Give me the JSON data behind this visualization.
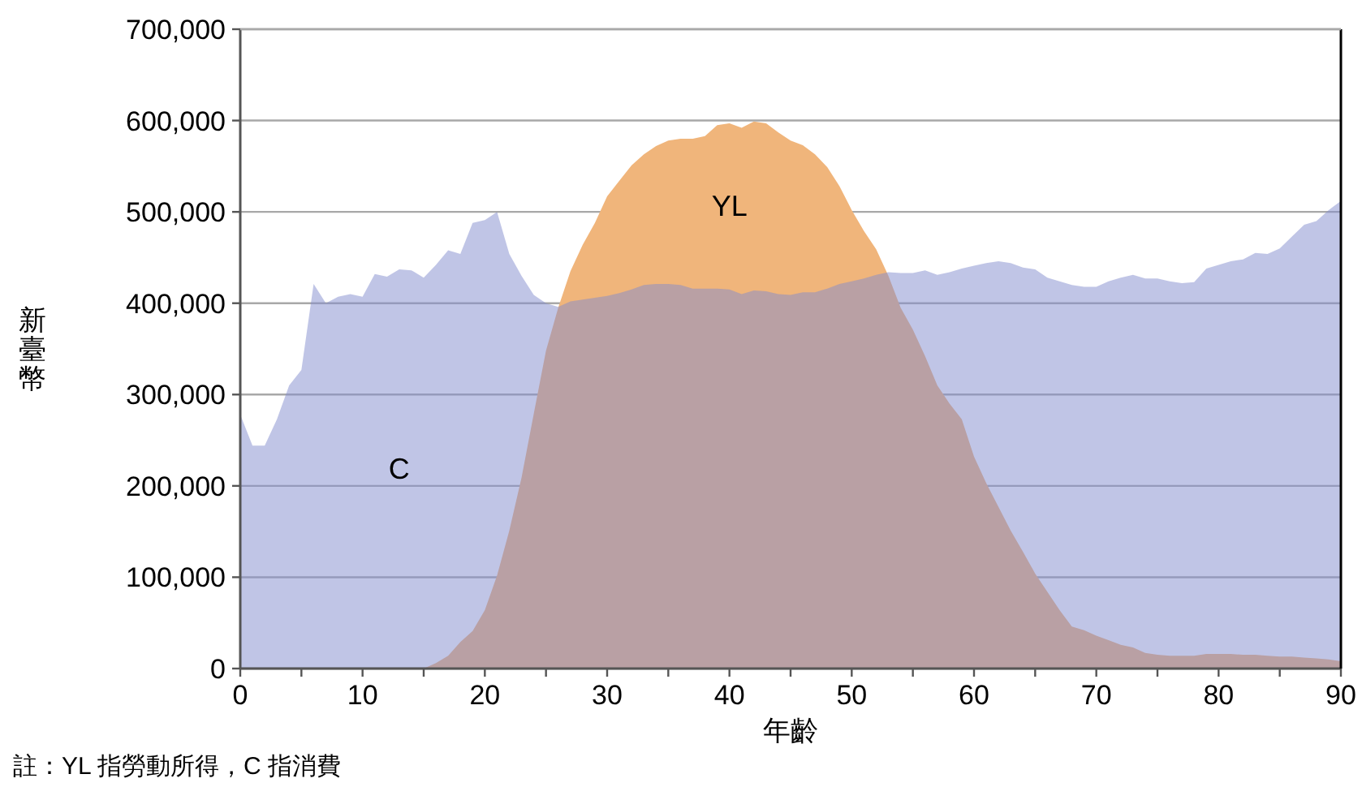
{
  "chart_data": {
    "type": "area",
    "xlabel": "年齡",
    "ylabel": "新臺幣",
    "annotations": [
      "註：YL 指勞動所得，C 指消費"
    ],
    "x": [
      0,
      1,
      2,
      3,
      4,
      5,
      6,
      7,
      8,
      9,
      10,
      11,
      12,
      13,
      14,
      15,
      16,
      17,
      18,
      19,
      20,
      21,
      22,
      23,
      24,
      25,
      26,
      27,
      28,
      29,
      30,
      31,
      32,
      33,
      34,
      35,
      36,
      37,
      38,
      39,
      40,
      41,
      42,
      43,
      44,
      45,
      46,
      47,
      48,
      49,
      50,
      51,
      52,
      53,
      54,
      55,
      56,
      57,
      58,
      59,
      60,
      61,
      62,
      63,
      64,
      65,
      66,
      67,
      68,
      69,
      70,
      71,
      72,
      73,
      74,
      75,
      76,
      77,
      78,
      79,
      80,
      81,
      82,
      83,
      84,
      85,
      86,
      87,
      88,
      89,
      90
    ],
    "series": [
      {
        "name": "C",
        "color": "#828ccd",
        "values": [
          278000,
          244000,
          244000,
          273000,
          310000,
          327000,
          421000,
          400000,
          407000,
          410000,
          407000,
          432000,
          429000,
          437000,
          436000,
          428000,
          442000,
          458000,
          454000,
          488000,
          491000,
          500000,
          454000,
          430000,
          409000,
          400000,
          396000,
          402000,
          404000,
          406000,
          408000,
          411000,
          415000,
          420000,
          421000,
          421000,
          420000,
          416000,
          416000,
          416000,
          415000,
          410000,
          414000,
          413000,
          410000,
          409000,
          412000,
          412000,
          416000,
          421000,
          424000,
          427000,
          431000,
          434000,
          433000,
          433000,
          436000,
          431000,
          434000,
          438000,
          441000,
          444000,
          446000,
          444000,
          439000,
          437000,
          428000,
          424000,
          420000,
          418000,
          418000,
          424000,
          428000,
          431000,
          427000,
          427000,
          424000,
          422000,
          423000,
          438000,
          442000,
          446000,
          448000,
          455000,
          454000,
          460000,
          473000,
          486000,
          490000,
          502000,
          512000
        ]
      },
      {
        "name": "YL",
        "color": "#f0b57b",
        "values": [
          0,
          0,
          0,
          0,
          0,
          0,
          0,
          0,
          0,
          0,
          0,
          0,
          0,
          0,
          0,
          0,
          6000,
          14000,
          29000,
          41000,
          64000,
          102000,
          151000,
          209000,
          279000,
          348000,
          395000,
          435000,
          464000,
          488000,
          517000,
          534000,
          551000,
          563000,
          572000,
          578000,
          580000,
          580000,
          583000,
          595000,
          597000,
          592000,
          599000,
          597000,
          587000,
          578000,
          573000,
          563000,
          549000,
          528000,
          502000,
          479000,
          459000,
          430000,
          395000,
          371000,
          342000,
          310000,
          290000,
          273000,
          232000,
          203000,
          177000,
          151000,
          128000,
          104000,
          84000,
          64000,
          46000,
          42000,
          36000,
          31000,
          26000,
          23000,
          17000,
          15000,
          14000,
          14000,
          14000,
          16000,
          16000,
          16000,
          15000,
          15000,
          14000,
          13000,
          13000,
          12000,
          11000,
          10000,
          8000
        ]
      }
    ],
    "xlim": [
      0,
      90
    ],
    "xticks": [
      0,
      {
        "value": 5,
        "label": null
      },
      10,
      {
        "value": 15,
        "label": null
      },
      20,
      {
        "value": 25,
        "label": null
      },
      30,
      {
        "value": 35,
        "label": null
      },
      40,
      {
        "value": 45,
        "label": null
      },
      50,
      {
        "value": 55,
        "label": null
      },
      60,
      {
        "value": 65,
        "label": null
      },
      70,
      {
        "value": 75,
        "label": null
      },
      80,
      {
        "value": 85,
        "label": null
      },
      90
    ],
    "ylim": [
      0,
      700000
    ],
    "yticks": [
      {
        "value": 0,
        "label": "0"
      },
      {
        "value": 100000,
        "label": "100,000"
      },
      {
        "value": 200000,
        "label": "200,000"
      },
      {
        "value": 300000,
        "label": "300,000"
      },
      {
        "value": 400000,
        "label": "400,000"
      },
      {
        "value": 500000,
        "label": "500,000"
      },
      {
        "value": 600000,
        "label": "600,000"
      },
      {
        "value": 700000,
        "label": "700,000"
      }
    ],
    "grid": "y"
  }
}
